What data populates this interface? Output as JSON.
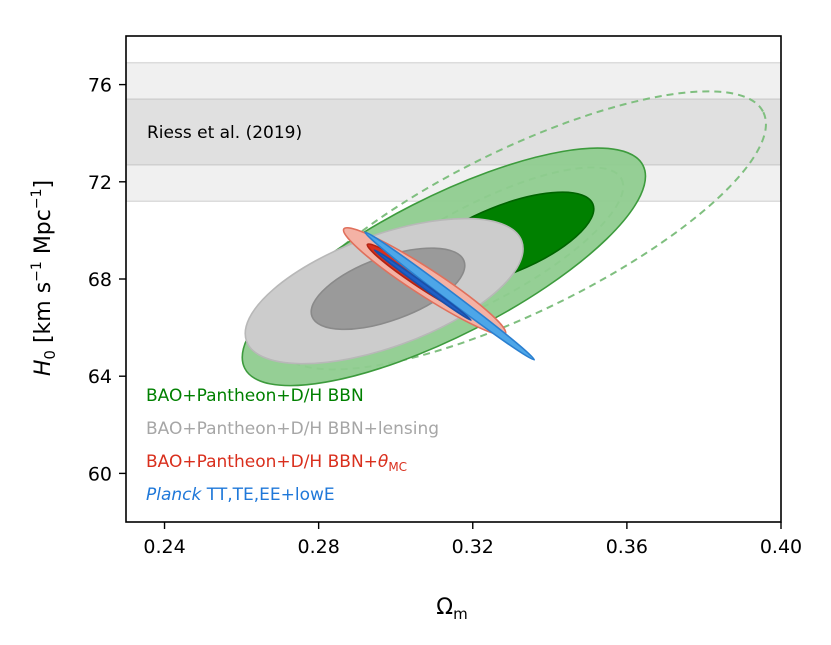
{
  "chart_data": {
    "type": "contour",
    "xlabel": "Ω",
    "xlabel_sub": "m",
    "ylabel_prefix": "H",
    "ylabel_sub": "0",
    "ylabel_units": " [km s",
    "ylabel_sup1": "−1",
    "ylabel_units2": " Mpc",
    "ylabel_sup2": "−1",
    "ylabel_close": "]",
    "xlim": [
      0.23,
      0.4
    ],
    "ylim": [
      58,
      78
    ],
    "xticks": [
      0.24,
      0.28,
      0.32,
      0.36,
      0.4
    ],
    "xtick_labels": [
      "0.24",
      "0.28",
      "0.32",
      "0.36",
      "0.40"
    ],
    "yticks": [
      60,
      64,
      68,
      72,
      76
    ],
    "ytick_labels": [
      "60",
      "64",
      "68",
      "72",
      "76"
    ],
    "band": {
      "label": "Riess et al. (2019)",
      "inner": [
        72.7,
        75.4
      ],
      "outer": [
        71.2,
        76.9
      ]
    },
    "contours": [
      {
        "name": "dashed-outer",
        "style": "dashed",
        "color": "#7fbf7f",
        "cx": 0.3325,
        "cy": 70.0,
        "rx": 0.07,
        "ry": 3.35,
        "rot": 26
      },
      {
        "name": "dashed-inner",
        "style": "dashed",
        "color": "#7fbf7f",
        "cx": 0.3215,
        "cy": 69.0,
        "rx": 0.042,
        "ry": 2.0,
        "rot": 28
      },
      {
        "name": "green-outer",
        "style": "filled",
        "color": "#8fcc8f",
        "edge": "#3d9b3d",
        "cx": 0.3125,
        "cy": 68.5,
        "rx": 0.058,
        "ry": 2.85,
        "rot": 27
      },
      {
        "name": "green-inner",
        "style": "filled",
        "color": "#008000",
        "edge": "#006400",
        "cx": 0.328,
        "cy": 69.6,
        "rx": 0.025,
        "ry": 1.4,
        "rot": 22
      },
      {
        "name": "grey-outer",
        "style": "filled",
        "color": "#cccccc",
        "edge": "#b8b8b8",
        "cx": 0.297,
        "cy": 67.5,
        "rx": 0.038,
        "ry": 2.3,
        "rot": 20
      },
      {
        "name": "grey-inner",
        "style": "filled",
        "color": "#9a9a9a",
        "edge": "#8a8a8a",
        "cx": 0.298,
        "cy": 67.6,
        "rx": 0.021,
        "ry": 1.3,
        "rot": 20
      },
      {
        "name": "red-outer",
        "style": "filled",
        "color": "#f4b2a5",
        "edge": "#e0705c",
        "cx": 0.3075,
        "cy": 67.9,
        "rx": 0.025,
        "ry": 0.55,
        "rot": -33
      },
      {
        "name": "red-inner",
        "style": "filled",
        "color": "#d92f1d",
        "edge": "#b22212",
        "cx": 0.3055,
        "cy": 68.05,
        "rx": 0.0155,
        "ry": 0.28,
        "rot": -34
      },
      {
        "name": "blue-outer",
        "style": "filled",
        "color": "#4da6e8",
        "edge": "#2a7fd0",
        "cx": 0.314,
        "cy": 67.3,
        "rx": 0.0275,
        "ry": 0.18,
        "rot": -37
      },
      {
        "name": "blue-inner",
        "style": "filled",
        "color": "#1f5fc6",
        "edge": "#1a4fa8",
        "cx": 0.307,
        "cy": 67.75,
        "rx": 0.0155,
        "ry": 0.09,
        "rot": -36
      }
    ],
    "legend": [
      {
        "label": "BAO+Pantheon+D/H BBN",
        "color": "#008000"
      },
      {
        "label": "BAO+Pantheon+D/H BBN+lensing",
        "color": "#a6a6a6"
      },
      {
        "label": "BAO+Pantheon+D/H BBN+",
        "suffix_symbol": "θ",
        "suffix_sub": "MC",
        "color": "#d92f1d"
      },
      {
        "label_italic": "Planck",
        "label": " TT,TE,EE+lowE",
        "color": "#1f78d9"
      }
    ]
  }
}
